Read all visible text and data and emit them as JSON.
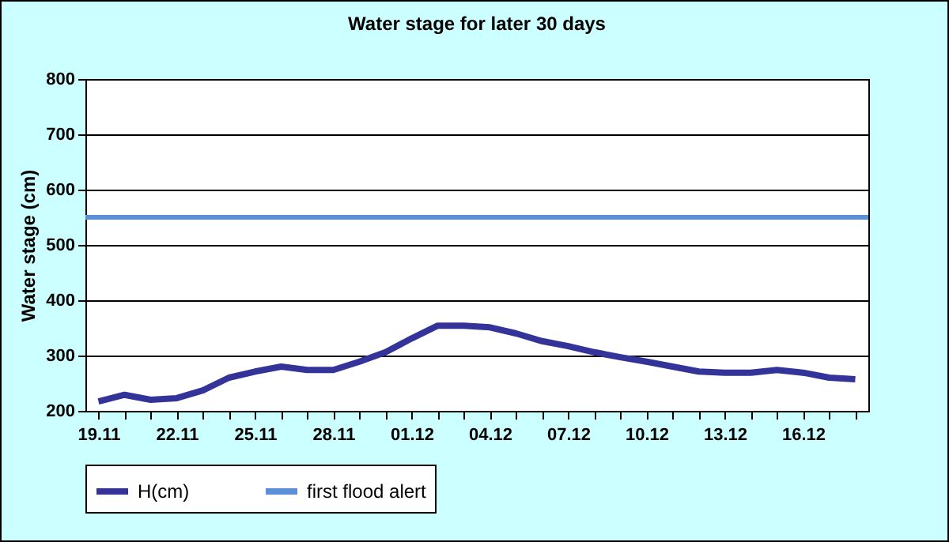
{
  "chart_data": {
    "type": "line",
    "title": "Water stage for later 30 days",
    "ylabel": "Water stage (cm)",
    "categories": [
      "19.11",
      null,
      null,
      "22.11",
      null,
      null,
      "25.11",
      null,
      null,
      "28.11",
      null,
      null,
      "01.12",
      null,
      null,
      "04.12",
      null,
      null,
      "07.12",
      null,
      null,
      "10.12",
      null,
      null,
      "13.12",
      null,
      null,
      "16.12",
      null,
      null
    ],
    "series": [
      {
        "name": "H(cm)",
        "color": "#333399",
        "values": [
          217,
          229,
          220,
          223,
          237,
          260,
          271,
          280,
          274,
          274,
          289,
          306,
          331,
          354,
          354,
          351,
          340,
          326,
          317,
          306,
          297,
          289,
          280,
          271,
          269,
          269,
          274,
          269,
          260,
          257
        ]
      }
    ],
    "ref_lines": [
      {
        "axis": "y",
        "value": 550,
        "label": "first flood alert",
        "color": "#5b8fd6"
      }
    ],
    "ylim": [
      200,
      800
    ],
    "yticks": [
      200,
      300,
      400,
      500,
      600,
      700,
      800
    ],
    "grid": "y",
    "legend": "bottom",
    "marker": "none",
    "line_style": "solid"
  }
}
